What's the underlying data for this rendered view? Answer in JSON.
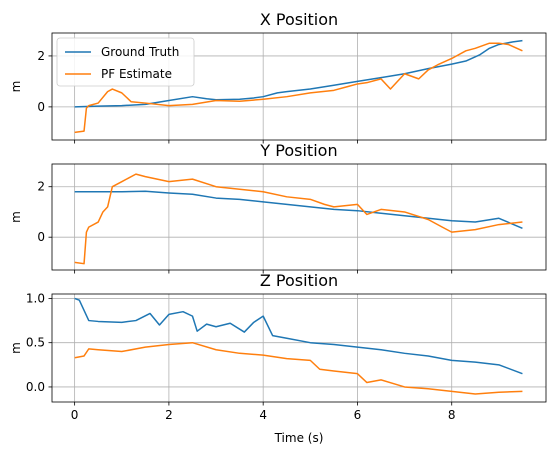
{
  "chart_data": [
    {
      "type": "line",
      "title": "X Position",
      "xlabel": "",
      "ylabel": "m",
      "xlim": [
        -0.48,
        10.0
      ],
      "ylim": [
        -1.3,
        2.9
      ],
      "xticks": [
        0,
        2,
        4,
        6,
        8
      ],
      "yticks": [
        0,
        2
      ],
      "xtick_labels": [],
      "grid": true,
      "legend": {
        "placement": "top-left",
        "entries": [
          "Ground Truth",
          "PF Estimate"
        ]
      },
      "series": [
        {
          "name": "Ground Truth",
          "color": "#1f77b4",
          "points": [
            [
              0,
              0
            ],
            [
              0.5,
              0.03
            ],
            [
              1,
              0.05
            ],
            [
              1.5,
              0.1
            ],
            [
              2,
              0.25
            ],
            [
              2.5,
              0.4
            ],
            [
              2.8,
              0.32
            ],
            [
              3,
              0.28
            ],
            [
              3.5,
              0.3
            ],
            [
              3.8,
              0.35
            ],
            [
              4,
              0.4
            ],
            [
              4.3,
              0.55
            ],
            [
              4.5,
              0.6
            ],
            [
              5,
              0.7
            ],
            [
              5.5,
              0.85
            ],
            [
              6,
              1.0
            ],
            [
              6.5,
              1.15
            ],
            [
              7,
              1.3
            ],
            [
              7.5,
              1.5
            ],
            [
              8,
              1.68
            ],
            [
              8.3,
              1.8
            ],
            [
              8.6,
              2.05
            ],
            [
              8.8,
              2.3
            ],
            [
              9,
              2.45
            ],
            [
              9.3,
              2.55
            ],
            [
              9.5,
              2.6
            ]
          ]
        },
        {
          "name": "PF Estimate",
          "color": "#ff7f0e",
          "points": [
            [
              0,
              -1.0
            ],
            [
              0.2,
              -0.95
            ],
            [
              0.25,
              -0.05
            ],
            [
              0.3,
              0.05
            ],
            [
              0.5,
              0.15
            ],
            [
              0.7,
              0.6
            ],
            [
              0.8,
              0.7
            ],
            [
              1,
              0.55
            ],
            [
              1.2,
              0.2
            ],
            [
              1.5,
              0.15
            ],
            [
              2,
              0.05
            ],
            [
              2.5,
              0.1
            ],
            [
              3,
              0.25
            ],
            [
              3.5,
              0.22
            ],
            [
              4,
              0.3
            ],
            [
              4.5,
              0.4
            ],
            [
              5,
              0.55
            ],
            [
              5.5,
              0.65
            ],
            [
              5.8,
              0.8
            ],
            [
              6,
              0.9
            ],
            [
              6.2,
              0.95
            ],
            [
              6.5,
              1.1
            ],
            [
              6.7,
              0.7
            ],
            [
              7,
              1.3
            ],
            [
              7.3,
              1.1
            ],
            [
              7.5,
              1.45
            ],
            [
              7.7,
              1.65
            ],
            [
              8,
              1.9
            ],
            [
              8.3,
              2.2
            ],
            [
              8.5,
              2.3
            ],
            [
              8.8,
              2.5
            ],
            [
              9,
              2.5
            ],
            [
              9.2,
              2.45
            ],
            [
              9.5,
              2.2
            ]
          ]
        }
      ]
    },
    {
      "type": "line",
      "title": "Y Position",
      "xlabel": "",
      "ylabel": "m",
      "xlim": [
        -0.48,
        10.0
      ],
      "ylim": [
        -1.3,
        2.9
      ],
      "xticks": [
        0,
        2,
        4,
        6,
        8
      ],
      "yticks": [
        0,
        2
      ],
      "xtick_labels": [],
      "grid": true,
      "series": [
        {
          "name": "Ground Truth",
          "color": "#1f77b4",
          "points": [
            [
              0,
              1.8
            ],
            [
              0.5,
              1.8
            ],
            [
              1,
              1.8
            ],
            [
              1.5,
              1.82
            ],
            [
              2,
              1.75
            ],
            [
              2.5,
              1.7
            ],
            [
              3,
              1.55
            ],
            [
              3.5,
              1.5
            ],
            [
              4,
              1.4
            ],
            [
              4.5,
              1.3
            ],
            [
              5,
              1.2
            ],
            [
              5.5,
              1.1
            ],
            [
              6,
              1.05
            ],
            [
              6.5,
              0.95
            ],
            [
              7,
              0.85
            ],
            [
              7.5,
              0.75
            ],
            [
              8,
              0.65
            ],
            [
              8.5,
              0.6
            ],
            [
              9,
              0.75
            ],
            [
              9.5,
              0.35
            ]
          ]
        },
        {
          "name": "PF Estimate",
          "color": "#ff7f0e",
          "points": [
            [
              0,
              -1.0
            ],
            [
              0.2,
              -1.05
            ],
            [
              0.25,
              0.2
            ],
            [
              0.3,
              0.4
            ],
            [
              0.5,
              0.6
            ],
            [
              0.6,
              1.0
            ],
            [
              0.7,
              1.2
            ],
            [
              0.8,
              2.0
            ],
            [
              1,
              2.2
            ],
            [
              1.3,
              2.5
            ],
            [
              1.5,
              2.4
            ],
            [
              2,
              2.2
            ],
            [
              2.5,
              2.3
            ],
            [
              3,
              2.0
            ],
            [
              3.5,
              1.9
            ],
            [
              4,
              1.8
            ],
            [
              4.5,
              1.6
            ],
            [
              5,
              1.5
            ],
            [
              5.3,
              1.3
            ],
            [
              5.5,
              1.2
            ],
            [
              6,
              1.3
            ],
            [
              6.2,
              0.9
            ],
            [
              6.5,
              1.1
            ],
            [
              7,
              1.0
            ],
            [
              7.5,
              0.7
            ],
            [
              7.8,
              0.4
            ],
            [
              8,
              0.2
            ],
            [
              8.5,
              0.3
            ],
            [
              9,
              0.5
            ],
            [
              9.5,
              0.6
            ]
          ]
        }
      ]
    },
    {
      "type": "line",
      "title": "Z Position",
      "xlabel": "Time (s)",
      "ylabel": "m",
      "xlim": [
        -0.48,
        10.0
      ],
      "ylim": [
        -0.17,
        1.05
      ],
      "xticks": [
        0,
        2,
        4,
        6,
        8
      ],
      "yticks": [
        0.0,
        0.5,
        1.0
      ],
      "xtick_labels": [
        "0",
        "2",
        "4",
        "6",
        "8"
      ],
      "ytick_labels": [
        "0.0",
        "0.5",
        "1.0"
      ],
      "grid": true,
      "series": [
        {
          "name": "Ground Truth",
          "color": "#1f77b4",
          "points": [
            [
              0,
              1.0
            ],
            [
              0.1,
              0.98
            ],
            [
              0.3,
              0.75
            ],
            [
              0.5,
              0.74
            ],
            [
              1,
              0.73
            ],
            [
              1.3,
              0.75
            ],
            [
              1.6,
              0.83
            ],
            [
              1.8,
              0.7
            ],
            [
              2,
              0.82
            ],
            [
              2.3,
              0.85
            ],
            [
              2.5,
              0.8
            ],
            [
              2.6,
              0.63
            ],
            [
              2.8,
              0.71
            ],
            [
              3,
              0.68
            ],
            [
              3.3,
              0.72
            ],
            [
              3.6,
              0.62
            ],
            [
              3.8,
              0.73
            ],
            [
              4,
              0.8
            ],
            [
              4.2,
              0.58
            ],
            [
              4.5,
              0.55
            ],
            [
              5,
              0.5
            ],
            [
              5.5,
              0.48
            ],
            [
              6,
              0.45
            ],
            [
              6.5,
              0.42
            ],
            [
              7,
              0.38
            ],
            [
              7.5,
              0.35
            ],
            [
              8,
              0.3
            ],
            [
              8.5,
              0.28
            ],
            [
              9,
              0.25
            ],
            [
              9.5,
              0.15
            ]
          ]
        },
        {
          "name": "PF Estimate",
          "color": "#ff7f0e",
          "points": [
            [
              0,
              0.33
            ],
            [
              0.2,
              0.35
            ],
            [
              0.3,
              0.43
            ],
            [
              0.5,
              0.42
            ],
            [
              1,
              0.4
            ],
            [
              1.5,
              0.45
            ],
            [
              2,
              0.48
            ],
            [
              2.5,
              0.5
            ],
            [
              3,
              0.42
            ],
            [
              3.5,
              0.38
            ],
            [
              4,
              0.36
            ],
            [
              4.5,
              0.32
            ],
            [
              5,
              0.3
            ],
            [
              5.2,
              0.2
            ],
            [
              5.5,
              0.18
            ],
            [
              6,
              0.15
            ],
            [
              6.2,
              0.05
            ],
            [
              6.5,
              0.08
            ],
            [
              7,
              0.0
            ],
            [
              7.5,
              -0.02
            ],
            [
              8,
              -0.05
            ],
            [
              8.5,
              -0.08
            ],
            [
              9,
              -0.06
            ],
            [
              9.5,
              -0.05
            ]
          ]
        }
      ]
    }
  ]
}
